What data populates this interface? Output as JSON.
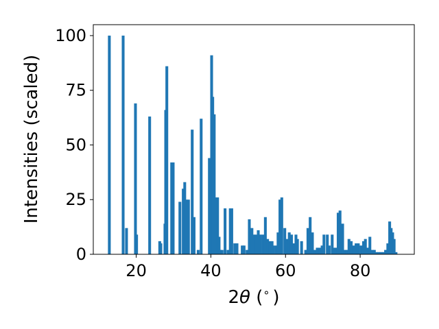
{
  "chart_data": {
    "type": "bar",
    "xlabel_main": "2",
    "xlabel_theta": "θ",
    "xlabel_unit": " (",
    "xlabel_deg": "∘",
    "xlabel_close": ")",
    "ylabel": "Intensities (scaled)",
    "xlim": [
      8.5,
      94.5
    ],
    "ylim": [
      0,
      105
    ],
    "xticks": [
      20,
      40,
      60,
      80
    ],
    "yticks": [
      0,
      25,
      50,
      75,
      100
    ],
    "bar_width": 0.75,
    "color": "#1f77b4",
    "x": [
      12.8,
      16.5,
      17.4,
      19.8,
      20.1,
      23.6,
      26.3,
      26.6,
      27.7,
      27.9,
      28.2,
      29.5,
      29.9,
      31.7,
      32.6,
      33.0,
      33.4,
      34.0,
      35.0,
      35.5,
      36.6,
      37.4,
      39.6,
      40.2,
      40.5,
      40.9,
      41.4,
      41.8,
      42.2,
      42.5,
      43.0,
      43.8,
      44.6,
      45.2,
      45.6,
      46.4,
      47.0,
      48.4,
      48.9,
      49.7,
      50.3,
      51.0,
      51.5,
      52.1,
      52.7,
      53.3,
      54.0,
      54.6,
      55.2,
      55.8,
      56.4,
      56.8,
      57.5,
      58.0,
      58.5,
      59.0,
      59.8,
      60.5,
      61.0,
      61.6,
      62.3,
      62.8,
      63.2,
      64.3,
      65.4,
      66.0,
      66.6,
      67.2,
      67.8,
      68.5,
      69.2,
      69.8,
      70.3,
      71.2,
      71.7,
      72.5,
      73.0,
      73.6,
      74.1,
      74.6,
      75.3,
      75.9,
      76.4,
      77.0,
      77.6,
      78.3,
      78.9,
      79.5,
      80.2,
      80.9,
      81.4,
      82.0,
      82.6,
      83.2,
      83.8,
      84.4,
      85.0,
      85.6,
      86.2,
      86.8,
      87.4,
      87.9,
      88.3,
      88.7,
      89.1,
      89.6
    ],
    "values": [
      100,
      100,
      12,
      69,
      9,
      63,
      6,
      5,
      14,
      66,
      86,
      42,
      42,
      24,
      30,
      33,
      25,
      25,
      57,
      17,
      2,
      62,
      44,
      91,
      72,
      64,
      26,
      26,
      8,
      2,
      2,
      21,
      2,
      21,
      21,
      5,
      5,
      4,
      4,
      2,
      16,
      12,
      9,
      9,
      11,
      9,
      9,
      17,
      7,
      6,
      6,
      4,
      4,
      10,
      25,
      26,
      12,
      7,
      10,
      9,
      5,
      9,
      7,
      6,
      2,
      12,
      17,
      10,
      2,
      3,
      3,
      4,
      9,
      9,
      4,
      9,
      3,
      3,
      19,
      20,
      14,
      2,
      2,
      7,
      6,
      4,
      5,
      5,
      4,
      6,
      7,
      3,
      8,
      2,
      2,
      1,
      1,
      1,
      1,
      2,
      5,
      15,
      12,
      10,
      7,
      1
    ]
  }
}
